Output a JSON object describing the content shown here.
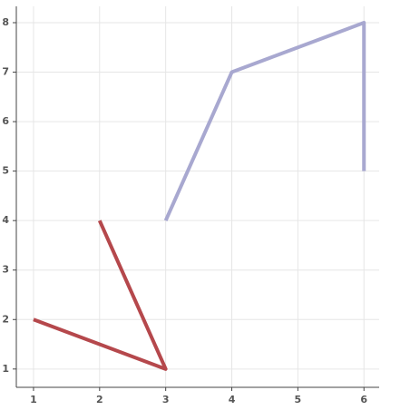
{
  "chart_data": {
    "type": "line",
    "series": [
      {
        "color": "#b5484c",
        "x": [
          1,
          3,
          2
        ],
        "values": [
          2,
          1,
          4
        ]
      },
      {
        "color": "#a8a8d0",
        "x": [
          3,
          4,
          6,
          6
        ],
        "values": [
          4,
          7,
          8,
          5
        ]
      }
    ],
    "xlim": [
      0.74,
      6.23
    ],
    "ylim": [
      0.63,
      8.33
    ],
    "xticks": [
      1,
      2,
      3,
      4,
      5,
      6
    ],
    "yticks": [
      1,
      2,
      3,
      4,
      5,
      6,
      7,
      8
    ],
    "grid": true
  }
}
